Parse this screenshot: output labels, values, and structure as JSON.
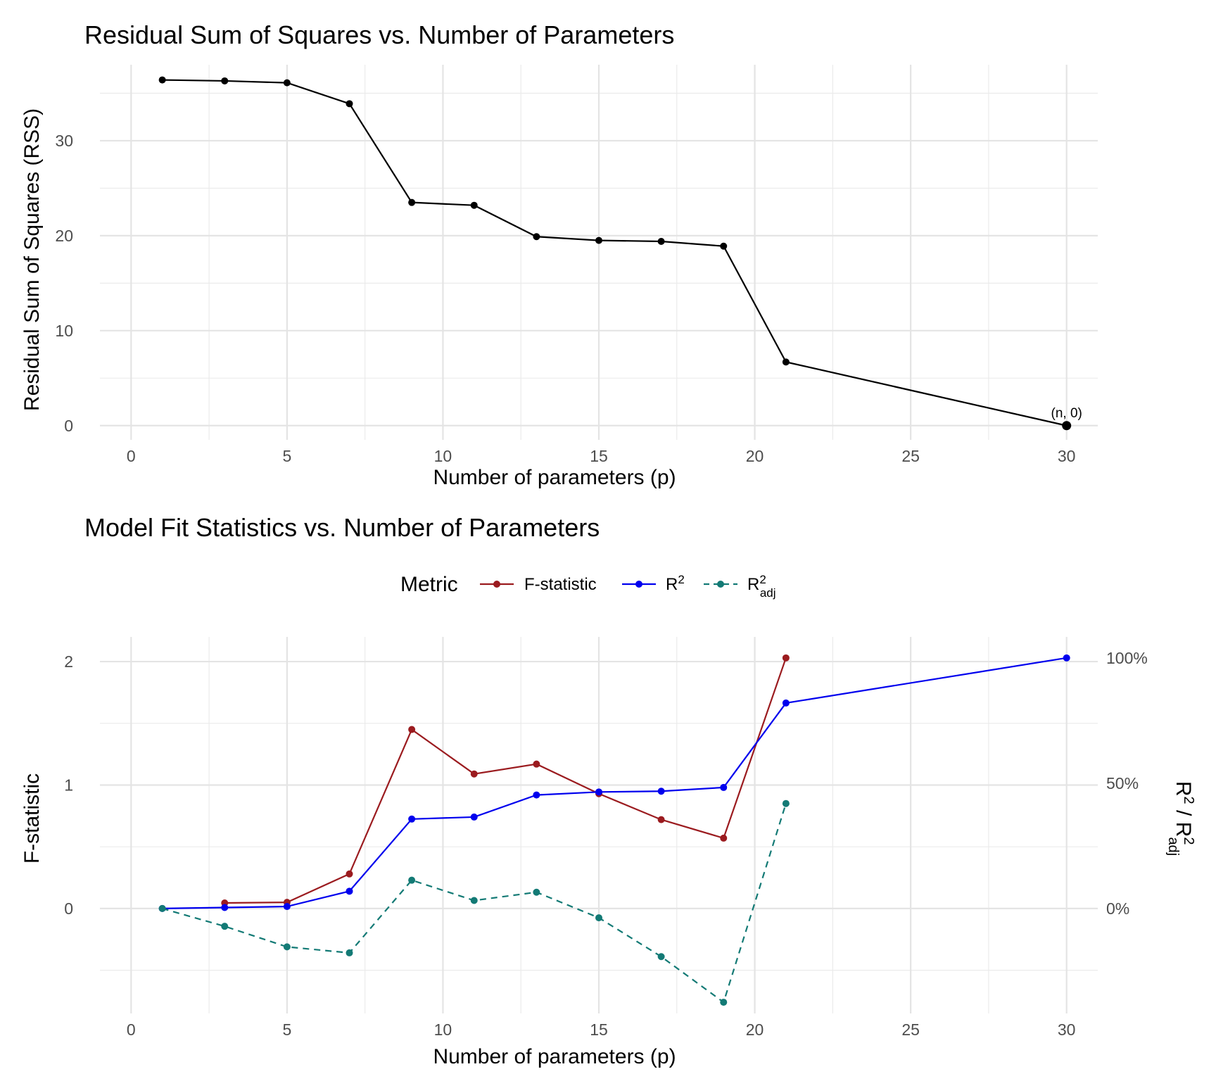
{
  "chart_data": [
    {
      "type": "line",
      "title": "Residual Sum of Squares vs. Number of Parameters",
      "xlabel": "Number of parameters (p)",
      "ylabel": "Residual Sum of Squares (RSS)",
      "xlim": [
        -1,
        31
      ],
      "ylim": [
        -1.5,
        38
      ],
      "x_ticks": [
        "0",
        "5",
        "10",
        "15",
        "20",
        "25",
        "30"
      ],
      "y_ticks": [
        "0",
        "10",
        "20",
        "30"
      ],
      "grid": true,
      "series": [
        {
          "color": "#000000",
          "points": [
            {
              "x": 1,
              "y": 36.4
            },
            {
              "x": 3,
              "y": 36.3
            },
            {
              "x": 5,
              "y": 36.1
            },
            {
              "x": 7,
              "y": 33.9
            },
            {
              "x": 9,
              "y": 23.5
            },
            {
              "x": 11,
              "y": 23.2
            },
            {
              "x": 13,
              "y": 19.9
            },
            {
              "x": 15,
              "y": 19.5
            },
            {
              "x": 17,
              "y": 19.4
            },
            {
              "x": 19,
              "y": 18.9
            },
            {
              "x": 21,
              "y": 6.7
            },
            {
              "x": 30,
              "y": 0
            }
          ]
        }
      ],
      "annotations": [
        {
          "text": "(n, 0)",
          "x": 30,
          "y": 0
        }
      ]
    },
    {
      "type": "line",
      "title": "Model Fit Statistics vs. Number of Parameters",
      "xlabel": "Number of parameters (p)",
      "ylabel_left": "F-statistic",
      "ylabel_right": {
        "base": "R",
        "sup": "2",
        "mid": " / R",
        "sup2": "2",
        "sub2": "adj"
      },
      "xlim": [
        -1,
        31
      ],
      "ylim_left": [
        -0.85,
        2.2
      ],
      "y_ticks_left": [
        "0",
        "1",
        "2"
      ],
      "y_ticks_right": [
        "0%",
        "50%",
        "100%"
      ],
      "secondary_axis_note": "R2 and adjusted R2 plotted on right axis where 100% corresponds to F = 2.03",
      "grid": true,
      "legend": {
        "title": "Metric",
        "position": "top",
        "entries": [
          {
            "label": "F-statistic",
            "color": "#9b1b1f",
            "dash": "solid"
          },
          {
            "label": "R",
            "sup": "2",
            "color": "#0000ee",
            "dash": "solid"
          },
          {
            "label": "R",
            "sup": "2",
            "sub": "adj",
            "color": "#137a75",
            "dash": "dashed"
          }
        ]
      },
      "series": [
        {
          "name": "F-statistic",
          "axis": "left",
          "color": "#9b1b1f",
          "dash": "solid",
          "points": [
            {
              "x": 3,
              "y": 0.045
            },
            {
              "x": 5,
              "y": 0.05
            },
            {
              "x": 7,
              "y": 0.28
            },
            {
              "x": 9,
              "y": 1.45
            },
            {
              "x": 11,
              "y": 1.09
            },
            {
              "x": 13,
              "y": 1.17
            },
            {
              "x": 15,
              "y": 0.93
            },
            {
              "x": 17,
              "y": 0.72
            },
            {
              "x": 19,
              "y": 0.57
            },
            {
              "x": 21,
              "y": 2.03
            }
          ]
        },
        {
          "name": "R2",
          "axis": "right",
          "unit": "percent",
          "color": "#0000ee",
          "dash": "solid",
          "points": [
            {
              "x": 1,
              "y": 0
            },
            {
              "x": 3,
              "y": 0.4
            },
            {
              "x": 5,
              "y": 0.8
            },
            {
              "x": 7,
              "y": 6.9
            },
            {
              "x": 9,
              "y": 35.7
            },
            {
              "x": 11,
              "y": 36.5
            },
            {
              "x": 13,
              "y": 45.3
            },
            {
              "x": 15,
              "y": 46.5
            },
            {
              "x": 17,
              "y": 46.8
            },
            {
              "x": 19,
              "y": 48.3
            },
            {
              "x": 21,
              "y": 82.0
            },
            {
              "x": 30,
              "y": 100
            }
          ]
        },
        {
          "name": "R2_adj",
          "axis": "right",
          "unit": "percent",
          "color": "#137a75",
          "dash": "dashed",
          "points": [
            {
              "x": 1,
              "y": 0
            },
            {
              "x": 3,
              "y": -7.1
            },
            {
              "x": 5,
              "y": -15.3
            },
            {
              "x": 7,
              "y": -17.7
            },
            {
              "x": 9,
              "y": 11.3
            },
            {
              "x": 11,
              "y": 3.2
            },
            {
              "x": 13,
              "y": 6.5
            },
            {
              "x": 15,
              "y": -3.7
            },
            {
              "x": 17,
              "y": -19.2
            },
            {
              "x": 19,
              "y": -37.4
            },
            {
              "x": 21,
              "y": 41.9
            }
          ]
        }
      ]
    }
  ]
}
